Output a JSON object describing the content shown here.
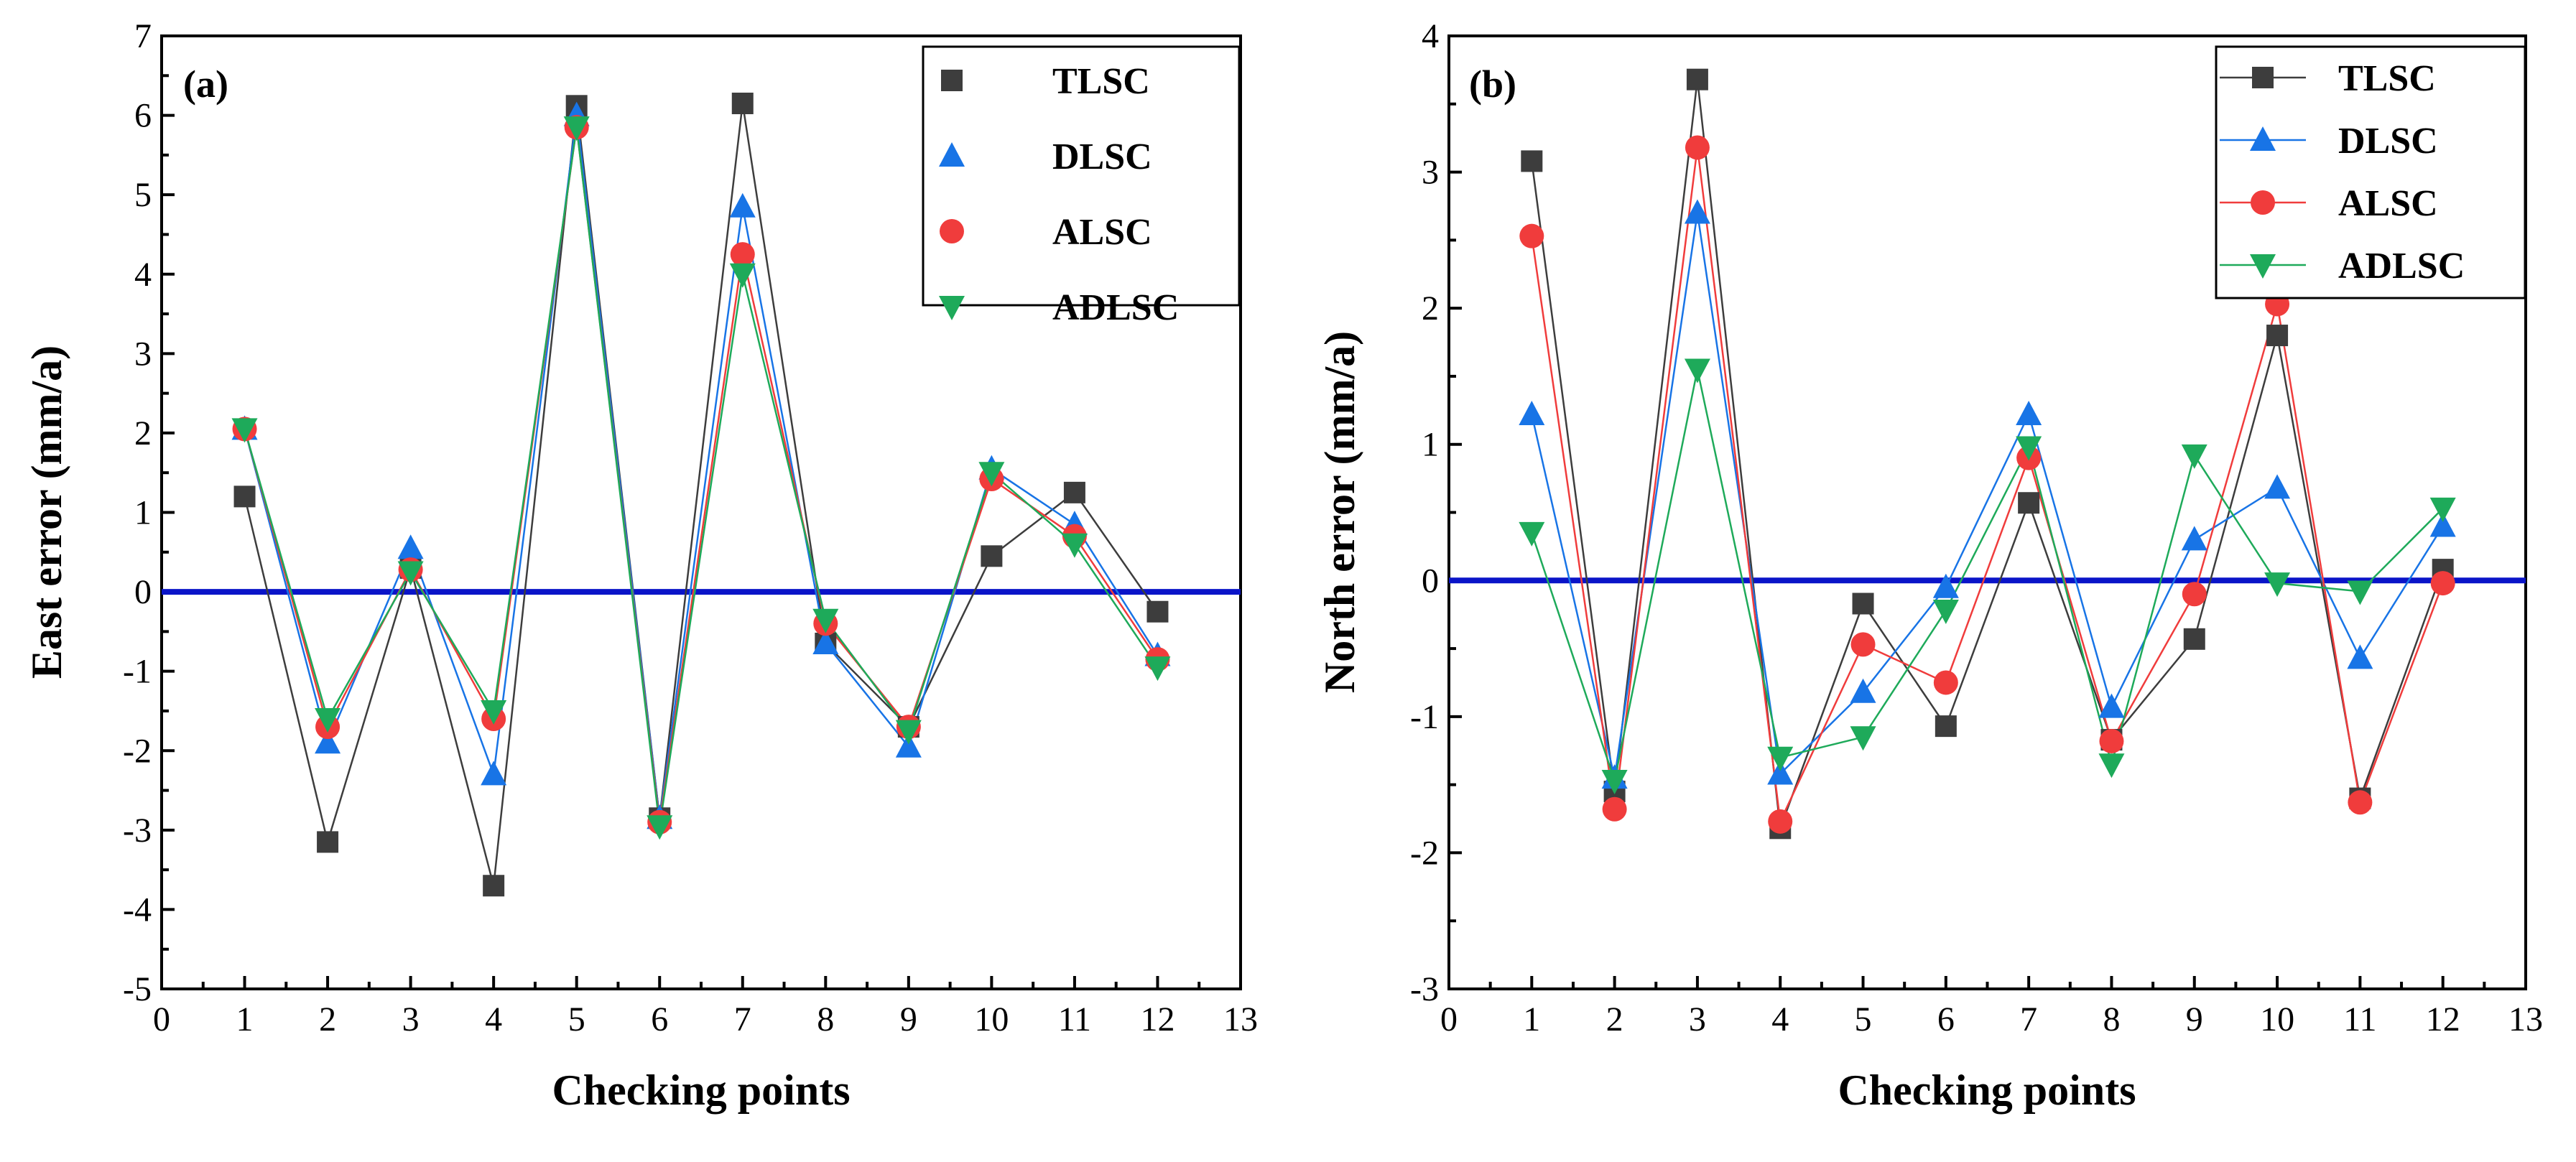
{
  "chart_data": [
    {
      "type": "line",
      "panel_label": "(a)",
      "xlabel": "Checking points",
      "ylabel": "East error (mm/a)",
      "xlim": [
        0,
        13
      ],
      "ylim": [
        -5,
        7
      ],
      "x_ticks": [
        "0",
        "1",
        "2",
        "3",
        "4",
        "5",
        "6",
        "7",
        "8",
        "9",
        "10",
        "11",
        "12",
        "13"
      ],
      "y_ticks": [
        "-5",
        "-4",
        "-3",
        "-2",
        "-1",
        "0",
        "1",
        "2",
        "3",
        "4",
        "5",
        "6",
        "7"
      ],
      "x": [
        1,
        2,
        3,
        4,
        5,
        6,
        7,
        8,
        9,
        10,
        11,
        12
      ],
      "reference_line": 0,
      "legend_position": "top-right",
      "show_legend_lines": false,
      "series": [
        {
          "name": "TLSC",
          "marker": "square",
          "color": "#3d3d3d",
          "values": [
            1.2,
            -3.15,
            0.3,
            -3.7,
            6.12,
            -2.85,
            6.15,
            -0.65,
            -1.7,
            0.45,
            1.25,
            -0.25
          ]
        },
        {
          "name": "DLSC",
          "marker": "triangle-up",
          "color": "#1874e6",
          "values": [
            2.05,
            -1.9,
            0.55,
            -2.3,
            6.0,
            -2.85,
            4.85,
            -0.65,
            -1.95,
            1.55,
            0.85,
            -0.8
          ]
        },
        {
          "name": "ALSC",
          "marker": "circle",
          "color": "#f03c3c",
          "values": [
            2.05,
            -1.7,
            0.28,
            -1.6,
            5.85,
            -2.9,
            4.25,
            -0.4,
            -1.7,
            1.42,
            0.7,
            -0.85
          ]
        },
        {
          "name": "ADLSC",
          "marker": "triangle-down",
          "color": "#1eaa5a",
          "values": [
            2.05,
            -1.6,
            0.25,
            -1.5,
            5.85,
            -2.95,
            4.0,
            -0.35,
            -1.75,
            1.5,
            0.6,
            -0.95
          ]
        }
      ]
    },
    {
      "type": "line",
      "panel_label": "(b)",
      "xlabel": "Checking points",
      "ylabel": "North error (mm/a)",
      "xlim": [
        0,
        13
      ],
      "ylim": [
        -3,
        4
      ],
      "x_ticks": [
        "0",
        "1",
        "2",
        "3",
        "4",
        "5",
        "6",
        "7",
        "8",
        "9",
        "10",
        "11",
        "12",
        "13"
      ],
      "y_ticks": [
        "-3",
        "-2",
        "-1",
        "0",
        "1",
        "2",
        "3",
        "4"
      ],
      "x": [
        1,
        2,
        3,
        4,
        5,
        6,
        7,
        8,
        9,
        10,
        11,
        12
      ],
      "reference_line": 0,
      "legend_position": "top-right",
      "show_legend_lines": true,
      "series": [
        {
          "name": "TLSC",
          "marker": "square",
          "color": "#3d3d3d",
          "values": [
            3.08,
            -1.55,
            3.68,
            -1.82,
            -0.17,
            -1.07,
            0.57,
            -1.17,
            -0.43,
            1.8,
            -1.6,
            0.08
          ]
        },
        {
          "name": "DLSC",
          "marker": "triangle-up",
          "color": "#1874e6",
          "values": [
            1.22,
            -1.45,
            2.7,
            -1.42,
            -0.82,
            -0.05,
            1.22,
            -0.93,
            0.3,
            0.68,
            -0.57,
            0.4
          ]
        },
        {
          "name": "ALSC",
          "marker": "circle",
          "color": "#f03c3c",
          "values": [
            2.53,
            -1.68,
            3.18,
            -1.77,
            -0.47,
            -0.75,
            0.9,
            -1.18,
            -0.1,
            2.03,
            -1.63,
            -0.02
          ]
        },
        {
          "name": "ADLSC",
          "marker": "triangle-down",
          "color": "#1eaa5a",
          "values": [
            0.35,
            -1.47,
            1.55,
            -1.3,
            -1.15,
            -0.22,
            0.98,
            -1.35,
            0.92,
            -0.02,
            -0.08,
            0.53
          ]
        }
      ]
    }
  ]
}
